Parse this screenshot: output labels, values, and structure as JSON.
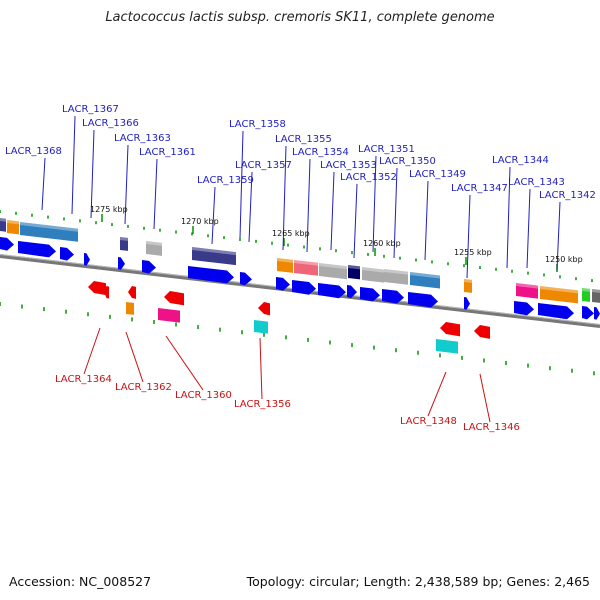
{
  "title": "Lactococcus lactis subsp. cremoris SK11, complete genome",
  "footer": {
    "accession": "Accession: NC_008527",
    "topology": "Topology: circular; Length: 2,438,589 bp; Genes: 2,465"
  },
  "colors": {
    "backbone": "#777777",
    "cds_arrow": "#0000ee",
    "tick": "#119911",
    "label_top": "#1f1fbf",
    "label_bottom": "#cc1111",
    "red_gene": "#ee0000"
  },
  "scale_labels": [
    "1275 kbp",
    "1270 kbp",
    "1265 kbp",
    "1260 kbp",
    "1255 kbp",
    "1250 kbp"
  ],
  "top_labels": [
    "LACR_1368",
    "LACR_1367",
    "LACR_1366",
    "LACR_1363",
    "LACR_1361",
    "LACR_1359",
    "LACR_1358",
    "LACR_1357",
    "LACR_1355",
    "LACR_1354",
    "LACR_1353",
    "LACR_1352",
    "LACR_1351",
    "LACR_1350",
    "LACR_1349",
    "LACR_1347",
    "LACR_1344",
    "LACR_1343",
    "LACR_1342"
  ],
  "bottom_labels": [
    "LACR_1364",
    "LACR_1362",
    "LACR_1360",
    "LACR_1356",
    "LACR_1348",
    "LACR_1346"
  ]
}
